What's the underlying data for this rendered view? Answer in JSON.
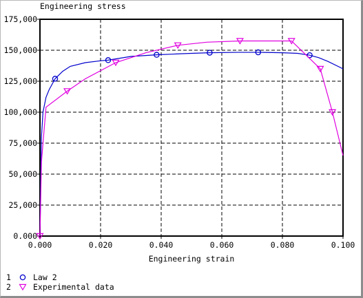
{
  "chart_data": {
    "type": "line",
    "title": "Engineering stress",
    "xlabel": "Engineering strain",
    "ylabel": "",
    "xlim": [
      0,
      0.1
    ],
    "ylim": [
      0,
      175000
    ],
    "grid": true,
    "x_ticks": [
      "0.000",
      "0.020",
      "0.040",
      "0.060",
      "0.080",
      "0.100"
    ],
    "y_ticks": [
      "0.000",
      "25,000",
      "50,000",
      "75,000",
      "100,000",
      "125,000",
      "150,000",
      "175,000"
    ],
    "legend": {
      "placement": "bottom-left",
      "items": [
        {
          "index": "1",
          "label": "Law 2",
          "marker": "circle",
          "color": "#0000cc"
        },
        {
          "index": "2",
          "label": "Experimental data",
          "marker": "triangle-down",
          "color": "#e000e0"
        }
      ]
    },
    "series": [
      {
        "name": "Law 2",
        "color": "#0000cc",
        "marker": "circle",
        "x": [
          0.0,
          0.0005,
          0.001,
          0.002,
          0.003,
          0.005,
          0.0075,
          0.01,
          0.015,
          0.02,
          0.0225,
          0.03,
          0.0385,
          0.045,
          0.05,
          0.056,
          0.065,
          0.072,
          0.08,
          0.085,
          0.089,
          0.092,
          0.095,
          0.1
        ],
        "y": [
          0,
          80000,
          100000,
          112000,
          118000,
          127000,
          133000,
          137000,
          140000,
          141500,
          142000,
          145000,
          146300,
          147000,
          147500,
          148000,
          148300,
          148300,
          148000,
          147500,
          146000,
          144000,
          141000,
          135000
        ],
        "marker_x": [
          0.005,
          0.0225,
          0.0385,
          0.056,
          0.072,
          0.089
        ],
        "marker_y": [
          127000,
          142000,
          146300,
          148000,
          148300,
          146000
        ]
      },
      {
        "name": "Experimental data",
        "color": "#e000e0",
        "marker": "triangle-down",
        "x": [
          0.0,
          0.0005,
          0.002,
          0.009,
          0.015,
          0.025,
          0.035,
          0.0455,
          0.055,
          0.066,
          0.083,
          0.0925,
          0.0965,
          0.1
        ],
        "y": [
          0,
          60000,
          104000,
          117000,
          127000,
          140000,
          148000,
          154000,
          156500,
          157500,
          157500,
          135000,
          100000,
          65000
        ],
        "marker_x": [
          0.0,
          0.009,
          0.025,
          0.0455,
          0.066,
          0.083,
          0.0925,
          0.0965
        ],
        "marker_y": [
          0,
          117000,
          140000,
          154000,
          157500,
          157500,
          135000,
          100000
        ]
      }
    ]
  }
}
